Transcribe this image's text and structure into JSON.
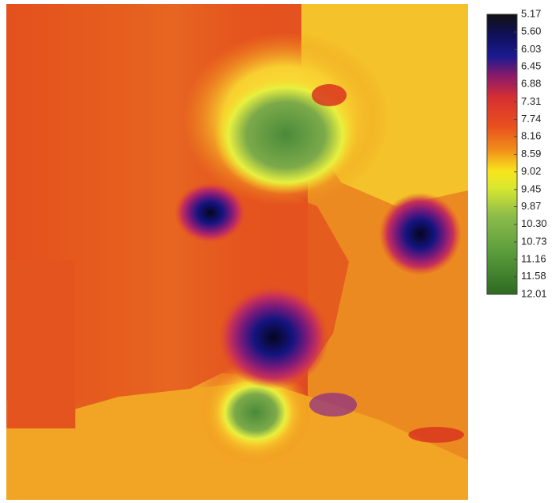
{
  "colorbar": {
    "lim": [
      5.17,
      12.01
    ],
    "ticks": [
      5.17,
      {
        "value": 5.6,
        "label": "5.60"
      },
      6.03,
      6.45,
      6.88,
      7.31,
      7.74,
      8.16,
      8.59,
      9.02,
      9.45,
      9.87,
      {
        "value": 10.3,
        "label": "10.30"
      },
      10.73,
      11.16,
      11.58,
      12.01
    ]
  }
}
